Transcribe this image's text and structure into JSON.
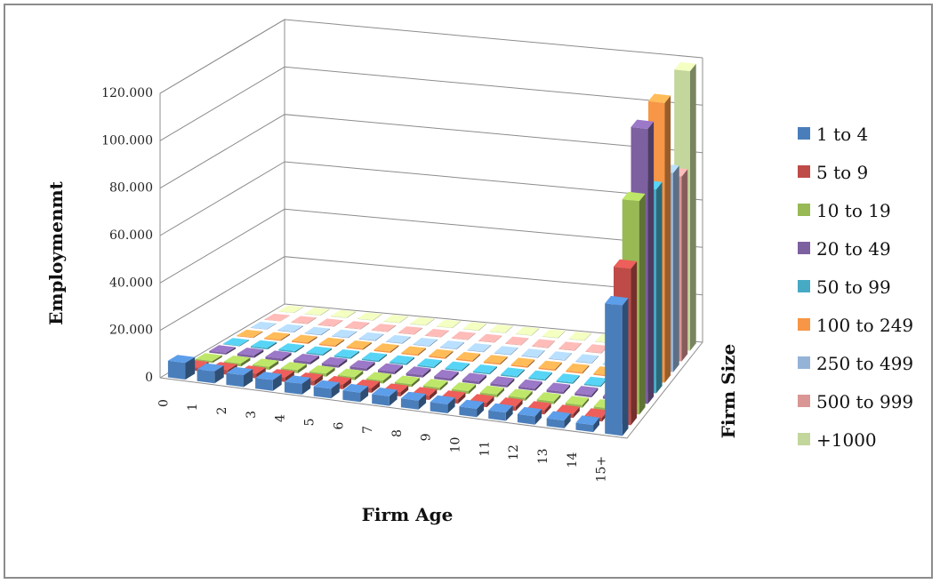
{
  "chart_data": {
    "type": "bar",
    "title": "",
    "xlabel": "Firm Age",
    "ylabel": "Employmenmt",
    "zlabel": "Firm Size",
    "categories": [
      "0",
      "1",
      "2",
      "3",
      "4",
      "5",
      "6",
      "7",
      "8",
      "9",
      "10",
      "11",
      "12",
      "13",
      "14",
      "15+"
    ],
    "y_ticks": [
      "0",
      "20.000",
      "40.000",
      "60.000",
      "80.000",
      "100.000",
      "120.000"
    ],
    "ylim": [
      0,
      120000
    ],
    "grid": true,
    "legend_position": "right",
    "series": [
      {
        "name": "1 to 4",
        "color": "#4a7ebb",
        "values": [
          7000,
          5000,
          5000,
          4500,
          4500,
          4000,
          4000,
          4000,
          3800,
          3800,
          3500,
          3500,
          3500,
          3300,
          3000,
          55000
        ]
      },
      {
        "name": "5 to 9",
        "color": "#be4b48",
        "values": [
          1500,
          2000,
          2000,
          2000,
          2000,
          2000,
          2000,
          1800,
          1800,
          1800,
          1800,
          1800,
          1700,
          1700,
          1700,
          66000
        ]
      },
      {
        "name": "10 to 19",
        "color": "#98b954",
        "values": [
          800,
          1200,
          1300,
          1300,
          1300,
          1300,
          1300,
          1200,
          1200,
          1200,
          1200,
          1200,
          1200,
          1100,
          1100,
          90000
        ]
      },
      {
        "name": "20 to 49",
        "color": "#7d60a0",
        "values": [
          700,
          1000,
          1100,
          1100,
          1100,
          1100,
          1100,
          1100,
          1100,
          1100,
          1000,
          1000,
          1000,
          1000,
          1000,
          116000
        ]
      },
      {
        "name": "50 to 99",
        "color": "#46aac5",
        "values": [
          300,
          600,
          600,
          600,
          600,
          600,
          600,
          600,
          600,
          600,
          600,
          600,
          600,
          600,
          600,
          86000
        ]
      },
      {
        "name": "100 to 249",
        "color": "#f79646",
        "values": [
          300,
          500,
          600,
          600,
          600,
          600,
          600,
          600,
          600,
          600,
          600,
          600,
          600,
          600,
          600,
          118000
        ]
      },
      {
        "name": "250 to 499",
        "color": "#95b3d7",
        "values": [
          200,
          300,
          300,
          300,
          300,
          300,
          300,
          300,
          300,
          300,
          300,
          300,
          300,
          300,
          300,
          84000
        ]
      },
      {
        "name": "500 to 999",
        "color": "#d99694",
        "values": [
          100,
          200,
          200,
          200,
          200,
          200,
          200,
          200,
          200,
          200,
          200,
          200,
          200,
          200,
          200,
          78000
        ]
      },
      {
        "name": "+1000",
        "color": "#c3d69b",
        "values": [
          100,
          200,
          200,
          200,
          200,
          200,
          200,
          200,
          200,
          200,
          200,
          200,
          200,
          200,
          200,
          118000
        ]
      }
    ]
  }
}
